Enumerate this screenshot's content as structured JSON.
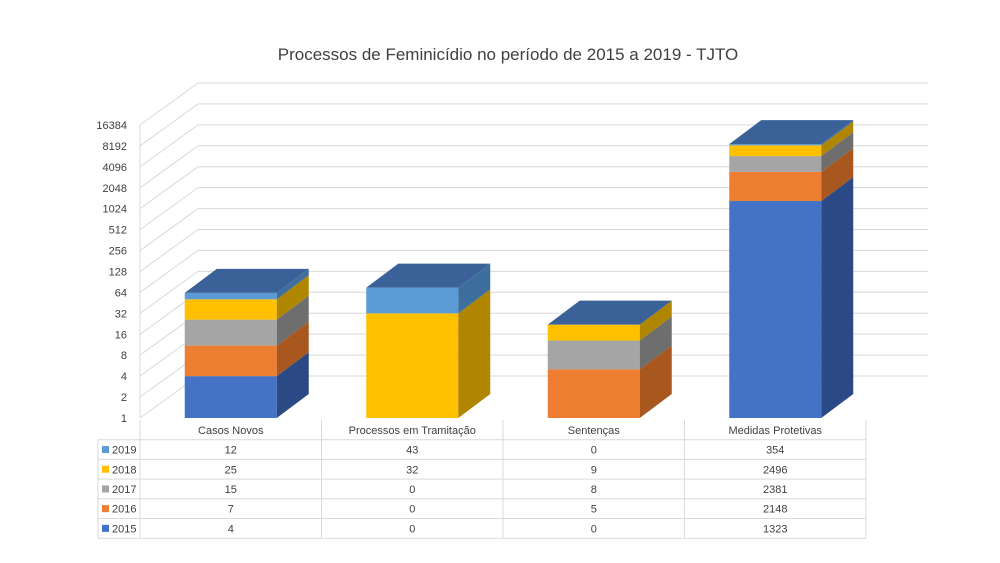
{
  "chart_data": {
    "type": "bar",
    "stacked": true,
    "style": "3d",
    "title": "Processos de Feminicídio no período de 2015 a 2019 - TJTO",
    "y_scale": "log2",
    "ylim": [
      1,
      16384
    ],
    "y_ticks": [
      "1",
      "2",
      "4",
      "8",
      "16",
      "32",
      "64",
      "128",
      "256",
      "512",
      "1024",
      "2048",
      "4096",
      "8192",
      "16384"
    ],
    "categories": [
      "Casos Novos",
      "Processos em Tramitação",
      "Sentenças",
      "Medidas Protetivas"
    ],
    "series": [
      {
        "name": "2015",
        "color": "#4472C4",
        "side": "#2B4A85",
        "top": "#3A6298",
        "values": [
          "4",
          "0",
          "0",
          "1323"
        ]
      },
      {
        "name": "2016",
        "color": "#ED7D31",
        "side": "#A8571F",
        "top": "#3A6298",
        "values": [
          "7",
          "0",
          "5",
          "2148"
        ]
      },
      {
        "name": "2017",
        "color": "#A5A5A5",
        "side": "#6E6E6E",
        "top": "#3A6298",
        "values": [
          "15",
          "0",
          "8",
          "2381"
        ]
      },
      {
        "name": "2018",
        "color": "#FFC000",
        "side": "#B08500",
        "top": "#3A6298",
        "values": [
          "25",
          "32",
          "9",
          "2496"
        ]
      },
      {
        "name": "2019",
        "color": "#5B9BD5",
        "side": "#3D6E9C",
        "top": "#3A6298",
        "values": [
          "12",
          "43",
          "0",
          "354"
        ]
      }
    ],
    "table_order": [
      "2019",
      "2018",
      "2017",
      "2016",
      "2015"
    ],
    "grid": true,
    "legend": "data-table"
  }
}
